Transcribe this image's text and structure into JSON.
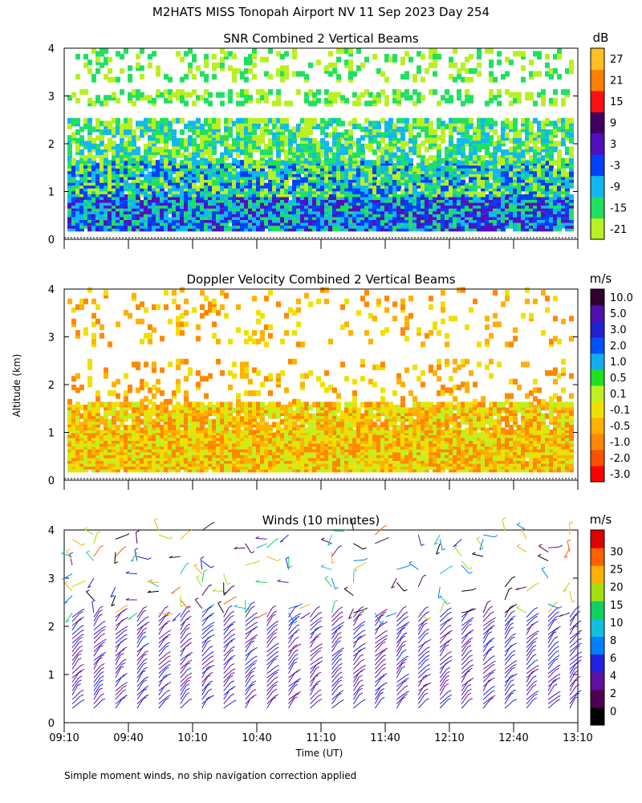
{
  "figure": {
    "title": "M2HATS MISS Tonopah Airport NV  11 Sep 2023 Day 254",
    "footnote": "Simple moment winds, no ship navigation correction applied",
    "shared_ylabel": "Altitude (km)",
    "shared_xlabel": "Time (UT)"
  },
  "chart_data": [
    {
      "type": "heatmap",
      "title": "SNR Combined 2 Vertical Beams",
      "ylim": [
        0,
        4
      ],
      "yticks": [
        "0",
        "1",
        "2",
        "3",
        "4"
      ],
      "xrange": [
        "09:10",
        "13:10"
      ],
      "colorbar": {
        "unit": "dB",
        "labels": [
          "-21",
          "-15",
          "-9",
          "-3",
          "3",
          "9",
          "15",
          "21",
          "27"
        ],
        "colors": [
          "#b8f020",
          "#20e060",
          "#10b8f0",
          "#0040ff",
          "#5010c0",
          "#400060",
          "#ff1010",
          "#ff8000",
          "#ffc020"
        ]
      },
      "layers": [
        {
          "alt_range": [
            0.15,
            0.9
          ],
          "dominant": "-9 to 3 dB"
        },
        {
          "alt_range": [
            0.9,
            2.5
          ],
          "dominant": "-21 to -9 dB"
        },
        {
          "alt_range": [
            2.5,
            4.0
          ],
          "dominant": "patchy -21 to -15 dB"
        }
      ]
    },
    {
      "type": "heatmap",
      "title": "Doppler Velocity Combined 2 Vertical Beams",
      "ylim": [
        0,
        4
      ],
      "yticks": [
        "0",
        "1",
        "2",
        "3",
        "4"
      ],
      "xrange": [
        "09:10",
        "13:10"
      ],
      "colorbar": {
        "unit": "m/s",
        "labels": [
          "-3.0",
          "-2.0",
          "-1.0",
          "-0.5",
          "-0.1",
          "0.1",
          "0.5",
          "1.0",
          "2.0",
          "3.0",
          "5.0",
          "10.0"
        ],
        "colors": [
          "#ff0000",
          "#ff5000",
          "#ff8800",
          "#ffb000",
          "#f0e000",
          "#c0f020",
          "#20e020",
          "#10b0f0",
          "#0050ff",
          "#2020d0",
          "#5010b0",
          "#300030"
        ]
      },
      "layers": [
        {
          "alt_range": [
            0.15,
            1.6
          ],
          "dominant": "-1.0 to 0.1 m/s"
        },
        {
          "alt_range": [
            2.3,
            4.0
          ],
          "dominant": "patchy -1.0 to 0.1 m/s"
        }
      ]
    },
    {
      "type": "scatter",
      "title": "Winds (10 minutes)",
      "ylim": [
        0,
        4
      ],
      "yticks": [
        "0",
        "1",
        "2",
        "3",
        "4"
      ],
      "xlabel": "Time (UT)",
      "xticks": [
        "09:10",
        "09:40",
        "10:10",
        "10:40",
        "11:10",
        "11:40",
        "12:10",
        "12:40",
        "13:10"
      ],
      "colorbar": {
        "unit": "m/s",
        "labels": [
          "0",
          "2",
          "4",
          "6",
          "8",
          "10",
          "15",
          "20",
          "25",
          "30"
        ],
        "colors": [
          "#000000",
          "#500050",
          "#6010a0",
          "#2020e0",
          "#0080ff",
          "#10c0e0",
          "#10d060",
          "#a0e010",
          "#ffb000",
          "#ff6000",
          "#e00000"
        ]
      },
      "profile_interval_min": 10
    }
  ]
}
